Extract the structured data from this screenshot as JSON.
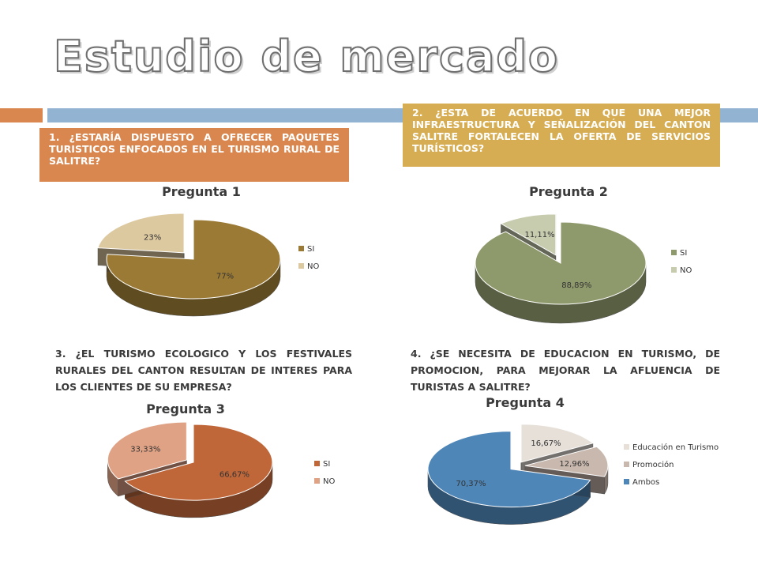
{
  "title": "Estudio de mercado",
  "questions": {
    "q1": "1. ¿ESTARÍA DISPUESTO A OFRECER PAQUETES TURISTICOS ENFOCADOS EN EL TURISMO RURAL DE SALITRE?",
    "q2": "2. ¿ESTA DE ACUERDO EN QUE UNA MEJOR INFRAESTRUCTURA Y SEÑALIZACIÓN DEL CANTON SALITRE FORTALECEN LA OFERTA DE SERVICIOS TURÍSTICOS?",
    "q3": "3. ¿EL TURISMO ECOLOGICO Y LOS FESTIVALES RURALES DEL CANTON RESULTAN DE INTERES PARA LOS CLIENTES DE SU EMPRESA?",
    "q4": "4. ¿SE NECESITA DE EDUCACION EN TURISMO, DE PROMOCION, PARA MEJORAR LA AFLUENCIA DE TURISTAS A SALITRE?"
  },
  "colors": {
    "q1_box": "#d9874f",
    "q2_box": "#d7ad53",
    "band_orange": "#d9874f",
    "band_blue": "#92b3d2"
  },
  "chart_data": [
    {
      "type": "pie",
      "title": "Pregunta 1",
      "labels": [
        "SI",
        "NO"
      ],
      "values": [
        77,
        23
      ],
      "data_labels": [
        "77%",
        "23%"
      ],
      "colors": [
        "#9b7a35",
        "#ddc9a0"
      ],
      "exploded": "NO",
      "legend": "right"
    },
    {
      "type": "pie",
      "title": "Pregunta 2",
      "labels": [
        "SI",
        "NO"
      ],
      "values": [
        88.89,
        11.11
      ],
      "data_labels": [
        "88,89%",
        "11,11%"
      ],
      "colors": [
        "#8f9a6c",
        "#c8ccaf"
      ],
      "exploded": "NO",
      "legend": "right"
    },
    {
      "type": "pie",
      "title": "Pregunta 3",
      "labels": [
        "SI",
        "NO"
      ],
      "values": [
        66.67,
        33.33
      ],
      "data_labels": [
        "66,67%",
        "33,33%"
      ],
      "colors": [
        "#c0673a",
        "#e0a285"
      ],
      "exploded": "NO",
      "legend": "right"
    },
    {
      "type": "pie",
      "title": "Pregunta 4",
      "labels": [
        "Educación en Turismo",
        "Promoción",
        "Ambos"
      ],
      "values": [
        16.67,
        12.96,
        70.37
      ],
      "data_labels": [
        "16,67%",
        "12,96%",
        "70,37%"
      ],
      "colors": [
        "#e6e0d9",
        "#c9b8ad",
        "#4f86b8"
      ],
      "exploded": "all",
      "legend": "right"
    }
  ]
}
